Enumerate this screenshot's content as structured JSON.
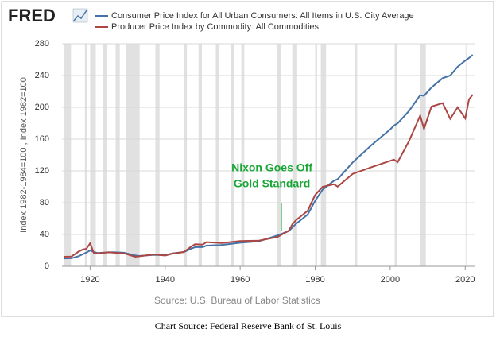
{
  "chart_data": {
    "type": "line",
    "logo": "FRED",
    "y_label": "Index 1982-1984=100 , Index 1982=100",
    "source": "Source: U.S. Bureau of Labor Statistics",
    "caption": "Chart Source: Federal Reserve Bank of St. Louis",
    "annotation": {
      "text": [
        "Nixon Goes Off",
        "Gold Standard"
      ],
      "x": 1971,
      "color": "#1aa636"
    },
    "x": [
      1913,
      1915,
      1917,
      1918,
      1919,
      1920,
      1921,
      1922,
      1925,
      1926,
      1929,
      1932,
      1933,
      1937,
      1940,
      1942,
      1945,
      1947,
      1948,
      1950,
      1951,
      1955,
      1960,
      1965,
      1970,
      1973,
      1974,
      1975,
      1978,
      1980,
      1982,
      1985,
      1986,
      1990,
      1995,
      2000,
      2001,
      2002,
      2005,
      2008,
      2009,
      2011,
      2014,
      2016,
      2018,
      2020,
      2021,
      2022
    ],
    "series": [
      {
        "name": "Consumer Price Index for All Urban Consumers: All Items in U.S. City Average",
        "color": "#4572a7",
        "values": [
          9.9,
          10.1,
          12.8,
          15.1,
          17.3,
          20.0,
          17.9,
          16.8,
          17.5,
          17.7,
          17.1,
          13.7,
          13.0,
          14.4,
          14.0,
          16.3,
          18.0,
          22.3,
          24.1,
          24.1,
          26.0,
          26.8,
          29.6,
          31.5,
          38.8,
          44.4,
          49.3,
          53.8,
          65.2,
          82.4,
          96.5,
          107.6,
          109.6,
          130.7,
          152.4,
          172.2,
          177.1,
          179.9,
          195.3,
          215.3,
          214.5,
          224.9,
          236.7,
          240.0,
          251.1,
          258.8,
          262,
          266
        ]
      },
      {
        "name": "Producer Price Index by Commodity: All Commodities",
        "color": "#aa4643",
        "values": [
          12.0,
          12.3,
          18.7,
          21.0,
          22.0,
          29.0,
          16.5,
          16.3,
          17.8,
          17.2,
          16.4,
          12.0,
          12.5,
          15.0,
          13.5,
          16.0,
          18.0,
          25.0,
          27.7,
          27.3,
          30.4,
          29.3,
          31.7,
          32.3,
          36.9,
          45.0,
          53.5,
          58.4,
          69.9,
          89.8,
          100.0,
          103.2,
          100.2,
          116.3,
          124.7,
          132.7,
          134.2,
          131.0,
          157.4,
          189.6,
          172.9,
          201.0,
          205.3,
          185.5,
          200.0,
          186,
          210,
          216
        ]
      }
    ],
    "recessions": [
      [
        1913.0,
        1914.9
      ],
      [
        1918.6,
        1919.2
      ],
      [
        1920.0,
        1921.5
      ],
      [
        1923.4,
        1924.5
      ],
      [
        1926.8,
        1927.9
      ],
      [
        1929.6,
        1933.2
      ],
      [
        1937.4,
        1938.5
      ],
      [
        1945.1,
        1945.8
      ],
      [
        1948.9,
        1949.8
      ],
      [
        1953.5,
        1954.4
      ],
      [
        1957.6,
        1958.3
      ],
      [
        1960.3,
        1961.1
      ],
      [
        1969.9,
        1970.9
      ],
      [
        1973.9,
        1975.2
      ],
      [
        1980.0,
        1980.5
      ],
      [
        1981.5,
        1982.9
      ],
      [
        1990.5,
        1991.2
      ],
      [
        2001.2,
        2001.9
      ],
      [
        2007.9,
        2009.5
      ],
      [
        2020.1,
        2020.3
      ]
    ],
    "recession_color": "#e1e1e1",
    "xlim": [
      1912.5,
      2022.7
    ],
    "xticks": [
      1920,
      1940,
      1960,
      1980,
      2000,
      2020
    ],
    "ylim": [
      0,
      280
    ],
    "yticks": [
      0,
      40,
      80,
      120,
      160,
      200,
      240,
      280
    ],
    "grid": true
  }
}
